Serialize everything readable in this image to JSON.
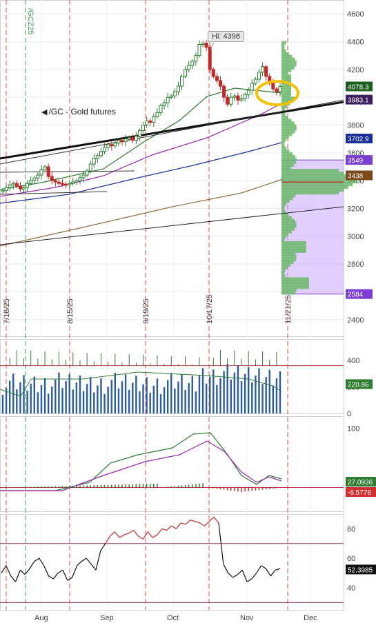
{
  "chart_data": [
    {
      "type": "candlestick",
      "annotation_label": "/GC - Gold futures",
      "watermark": "/GCZ25",
      "hi_label": "Hi: 4398",
      "y_ticks": [
        2400,
        2600,
        2800,
        3000,
        3200,
        3400,
        3600,
        3800,
        4000,
        4200,
        4400,
        4600
      ],
      "ylim": [
        2280,
        4700
      ],
      "date_markers": [
        "7/18/25",
        "8/15/25",
        "9/19/25",
        "10/17/25",
        "11/21/25"
      ],
      "closes": [
        3330,
        3350,
        3370,
        3380,
        3360,
        3340,
        3350,
        3380,
        3400,
        3420,
        3440,
        3480,
        3500,
        3430,
        3400,
        3390,
        3380,
        3375,
        3370,
        3380,
        3390,
        3400,
        3420,
        3440,
        3470,
        3520,
        3560,
        3580,
        3610,
        3640,
        3660,
        3650,
        3670,
        3690,
        3680,
        3700,
        3710,
        3690,
        3720,
        3760,
        3800,
        3830,
        3820,
        3860,
        3890,
        3940,
        3960,
        4000,
        4010,
        4040,
        4080,
        4150,
        4200,
        4230,
        4260,
        4300,
        4380,
        4390,
        4360,
        4200,
        4150,
        4120,
        4080,
        4000,
        3950,
        4000,
        4010,
        3980,
        3990,
        4020,
        4050,
        4100,
        4130,
        4180,
        4220,
        4150,
        4100,
        4060,
        4040,
        4078
      ],
      "price_labels": [
        {
          "value": "4078.3",
          "price": 4078,
          "color": "#1a5e20"
        },
        {
          "value": "3983.1",
          "price": 3983,
          "color": "#3b1f5e"
        },
        {
          "value": "3702.9",
          "price": 3703,
          "color": "#1a2f9e"
        },
        {
          "value": "3549",
          "price": 3549,
          "color": "#7b3fd1"
        },
        {
          "value": "3438",
          "price": 3438,
          "color": "#7a4a1a"
        },
        {
          "value": "2584",
          "price": 2584,
          "color": "#7b3fd1"
        }
      ],
      "volume_profile_range": [
        2584,
        3549
      ]
    },
    {
      "type": "bar",
      "name": "volume",
      "y_ticks": [
        400,
        200,
        0
      ],
      "last_label": "220.86"
    },
    {
      "type": "line",
      "name": "macd",
      "y_ticks": [
        100
      ],
      "last_labels": [
        "27.0936",
        "-6.5778"
      ]
    },
    {
      "type": "line",
      "name": "rsi",
      "y_ticks": [
        80,
        60,
        40
      ],
      "last_label": "52.3985",
      "levels": [
        70,
        30
      ]
    }
  ],
  "x_axis": {
    "months": [
      "Aug",
      "Sep",
      "Oct",
      "Nov",
      "Dec"
    ]
  },
  "colors": {
    "up": "#2e7d32",
    "down": "#c62828",
    "sma_green": "#2e7d32",
    "sma_purple": "#9c27b0",
    "sma_blue": "#1a2f9e",
    "sma_brown": "#8d6e3c",
    "highlight_circle": "#f2c200"
  }
}
